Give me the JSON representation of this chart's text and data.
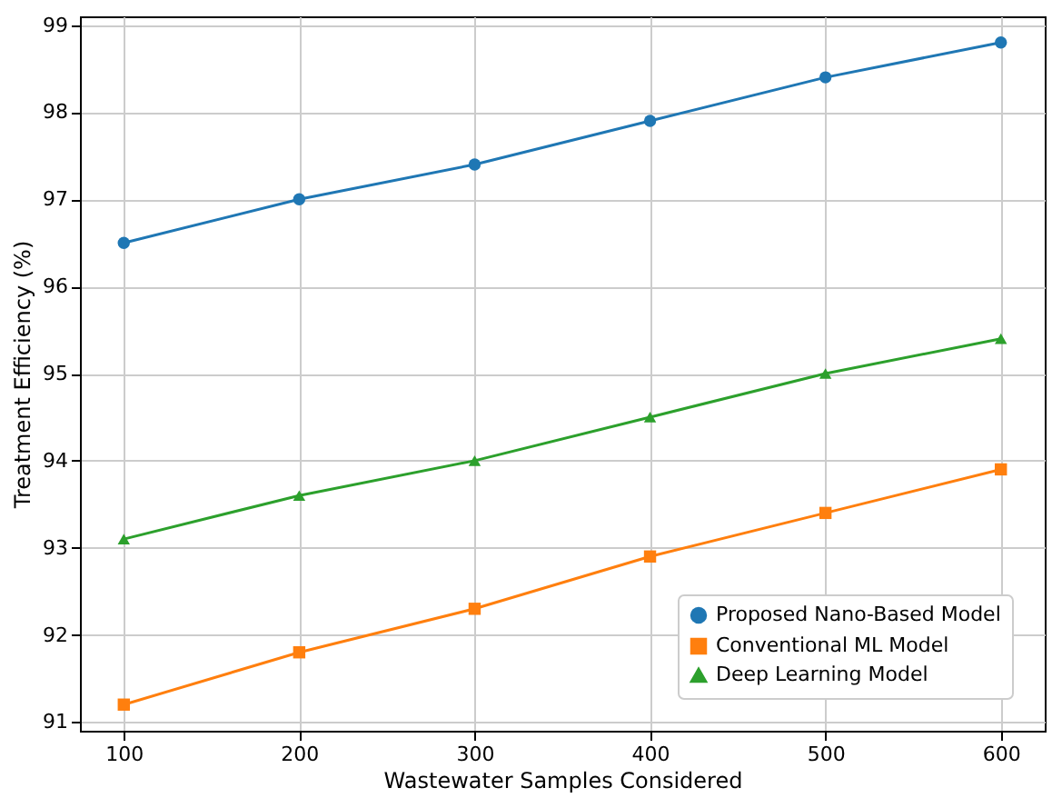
{
  "chart_data": {
    "type": "line",
    "xlabel": "Wastewater Samples Considered",
    "ylabel": "Treatment Efficiency (%)",
    "x": [
      100,
      200,
      300,
      400,
      500,
      600
    ],
    "series": [
      {
        "name": "Proposed Nano-Based Model",
        "color": "#1f77b4",
        "marker": "circle",
        "values": [
          96.5,
          97.0,
          97.4,
          97.9,
          98.4,
          98.8
        ]
      },
      {
        "name": "Conventional ML Model",
        "color": "#ff7f0e",
        "marker": "square",
        "values": [
          91.2,
          91.8,
          92.3,
          92.9,
          93.4,
          93.9
        ]
      },
      {
        "name": "Deep Learning Model",
        "color": "#2ca02c",
        "marker": "triangle",
        "values": [
          93.1,
          93.6,
          94.0,
          94.5,
          95.0,
          95.4
        ]
      }
    ],
    "xlim": [
      75,
      625
    ],
    "xticks": [
      100,
      200,
      300,
      400,
      500,
      600
    ],
    "ylim": [
      90.9,
      99.1
    ],
    "yticks": [
      91,
      92,
      93,
      94,
      95,
      96,
      97,
      98,
      99
    ],
    "grid": true,
    "legend": "bottom right",
    "line_style": "solid"
  }
}
